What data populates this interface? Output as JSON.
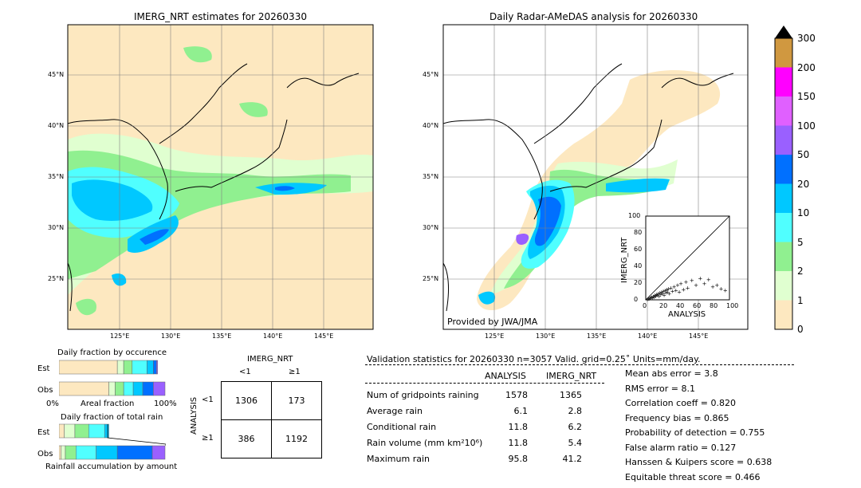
{
  "map_left": {
    "title": "IMERG_NRT estimates for 20260330"
  },
  "map_right": {
    "title": "Daily Radar-AMeDAS analysis for 20260330",
    "credit": "Provided by JWA/JMA"
  },
  "lat_labels": [
    "45°N",
    "40°N",
    "35°N",
    "30°N",
    "25°N"
  ],
  "lon_labels": [
    "125°E",
    "130°E",
    "135°E",
    "140°E",
    "145°E"
  ],
  "colorbar": {
    "ticks": [
      "300",
      "200",
      "150",
      "100",
      "50",
      "20",
      "10",
      "5",
      "2",
      "1",
      "0"
    ],
    "colors": [
      "#fde8c0",
      "#e0ffd0",
      "#90f090",
      "#50ffff",
      "#00c8ff",
      "#0070ff",
      "#9a60ff",
      "#e060ff",
      "#ff00ff",
      "#d09840"
    ]
  },
  "inset": {
    "xlabel": "ANALYSIS",
    "ylabel": "IMERG_NRT",
    "ticks": [
      "0",
      "20",
      "40",
      "60",
      "80",
      "100"
    ]
  },
  "occurrence": {
    "title": "Daily fraction by occurence",
    "est_label": "Est",
    "obs_label": "Obs",
    "axis_left": "0%",
    "axis_mid": "Areal fraction",
    "axis_right": "100%"
  },
  "total_rain": {
    "title": "Daily fraction of total rain",
    "est_label": "Est",
    "obs_label": "Obs",
    "footer": "Rainfall accumulation by amount"
  },
  "contingency": {
    "title": "IMERG_NRT",
    "col_lt": "<1",
    "col_ge": "≥1",
    "row_axis": "ANALYSIS",
    "row_lt": "<1",
    "row_ge": "≥1",
    "cells": [
      "1306",
      "173",
      "386",
      "1192"
    ]
  },
  "validation": {
    "header": "Validation statistics for 20260330  n=3057 Valid. grid=0.25˚ Units=mm/day.",
    "col_analysis": "ANALYSIS",
    "col_imerg": "IMERG_NRT",
    "rows": [
      {
        "label": "Num of gridpoints raining",
        "analysis": "1578",
        "imerg": "1365"
      },
      {
        "label": "Average rain",
        "analysis": "6.1",
        "imerg": "2.8"
      },
      {
        "label": "Conditional rain",
        "analysis": "11.8",
        "imerg": "6.2"
      },
      {
        "label": "Rain volume (mm km²10⁶)",
        "analysis": "11.8",
        "imerg": "5.4"
      },
      {
        "label": "Maximum rain",
        "analysis": "95.8",
        "imerg": "41.2"
      }
    ],
    "scores": [
      "Mean abs error =    3.8",
      "RMS error =    8.1",
      "Correlation coeff =  0.820",
      "Frequency bias =  0.865",
      "Probability of detection =  0.755",
      "False alarm ratio =  0.127",
      "Hanssen & Kuipers score =  0.638",
      "Equitable threat score =  0.466"
    ]
  },
  "chart_data": [
    {
      "type": "table",
      "title": "IMERG_NRT",
      "rows": [
        "<1",
        "≥1"
      ],
      "cols": [
        "<1",
        "≥1"
      ],
      "values": [
        [
          1306,
          173
        ],
        [
          386,
          1192
        ]
      ]
    },
    {
      "type": "bar",
      "title": "Daily fraction by occurence",
      "categories": [
        "Est",
        "Obs"
      ],
      "series": [
        {
          "values": [
            0.55,
            0.47
          ]
        },
        {
          "values": [
            0.06,
            0.06
          ]
        },
        {
          "values": [
            0.08,
            0.08
          ]
        },
        {
          "values": [
            0.14,
            0.09
          ]
        },
        {
          "values": [
            0.06,
            0.09
          ]
        },
        {
          "values": [
            0.03,
            0.1
          ]
        },
        {
          "values": [
            0.01,
            0.11
          ]
        }
      ]
    },
    {
      "type": "scatter",
      "xlabel": "ANALYSIS",
      "ylabel": "IMERG_NRT",
      "xlim": [
        0,
        100
      ],
      "ylim": [
        0,
        100
      ],
      "x": [
        2,
        3,
        4,
        5,
        6,
        7,
        8,
        9,
        10,
        11,
        12,
        13,
        14,
        15,
        16,
        17,
        18,
        19,
        20,
        21,
        22,
        23,
        24,
        25,
        26,
        27,
        28,
        30,
        32,
        34,
        36,
        38,
        40,
        42,
        45,
        48,
        50,
        55,
        60,
        65,
        70,
        75,
        80,
        85,
        90,
        95
      ],
      "y": [
        1,
        2,
        2,
        3,
        3,
        4,
        3,
        5,
        4,
        6,
        5,
        7,
        6,
        8,
        5,
        9,
        7,
        10,
        8,
        11,
        6,
        12,
        9,
        13,
        10,
        14,
        8,
        15,
        11,
        16,
        12,
        18,
        10,
        20,
        13,
        22,
        15,
        24,
        18,
        26,
        20,
        25,
        16,
        18,
        14,
        12
      ]
    }
  ]
}
